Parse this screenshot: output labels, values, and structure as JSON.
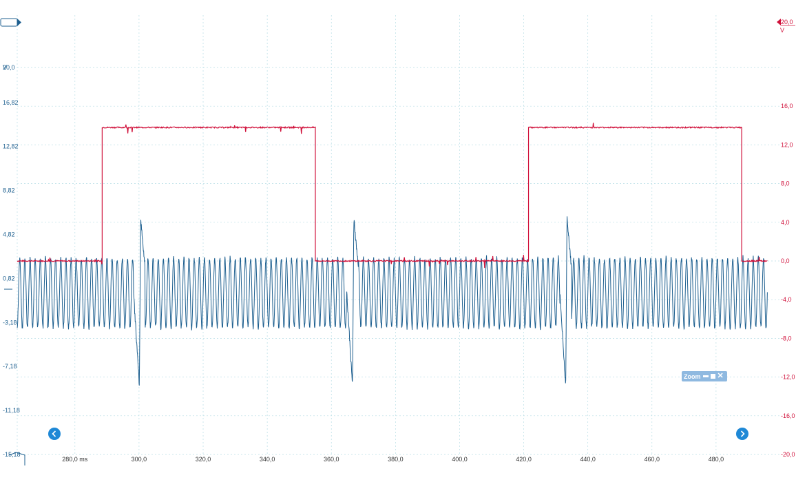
{
  "chart_data": {
    "type": "line",
    "x_axis": {
      "unit": "ms",
      "range": [
        262,
        500
      ],
      "ticks": [
        280,
        300,
        320,
        340,
        360,
        380,
        400,
        420,
        440,
        460,
        480
      ],
      "tick_labels": [
        "280,0 ms",
        "300,0",
        "320,0",
        "340,0",
        "360,0",
        "380,0",
        "400,0",
        "420,0",
        "440,0",
        "460,0",
        "480,0"
      ]
    },
    "left_axis": {
      "unit_label": "V",
      "range": [
        -15.18,
        20.0
      ],
      "ticks": [
        20.0,
        16.82,
        12.82,
        8.82,
        4.82,
        0.82,
        -3.18,
        -7.18,
        -11.18,
        -15.18
      ],
      "tick_labels": [
        "20,0",
        "16,82",
        "12,82",
        "8,82",
        "4,82",
        "0,82",
        "-3,18",
        "-7,18",
        "-11,18",
        "-15,18"
      ]
    },
    "right_axis": {
      "unit_label": "V",
      "range": [
        -20.0,
        20.0
      ],
      "ticks": [
        16.0,
        12.0,
        8.0,
        4.0,
        0.0,
        -4.0,
        -8.0,
        -12.0,
        -16.0,
        -20.0
      ],
      "tick_labels": [
        "16,0",
        "12,0",
        "8,0",
        "4,0",
        "0,0",
        "-4,0",
        "-8,0",
        "-12,0",
        "-16,0",
        "-20,0"
      ],
      "top_marker_label": "20,0"
    },
    "grid": true,
    "series": [
      {
        "axis": "right",
        "color": "#d0103a",
        "shape": "square-wave",
        "low_level": 0.0,
        "high_level": 13.8,
        "edges_ms": [
          288.5,
          355.0,
          421.5,
          488.0
        ],
        "starts_high": false
      },
      {
        "axis": "left",
        "color": "#1d5f8f",
        "shape": "oscillation",
        "center": -0.5,
        "amplitude": 3.2,
        "period_ms": 1.6,
        "transients_ms": [
          300.5,
          367.0,
          433.5
        ]
      }
    ]
  },
  "ui": {
    "zoom_label": "Zoom",
    "left_channel_color": "#1d5f8f",
    "right_channel_color": "#d0103a",
    "nav_left_icon": "chevron-left-icon",
    "nav_right_icon": "chevron-right-icon"
  }
}
